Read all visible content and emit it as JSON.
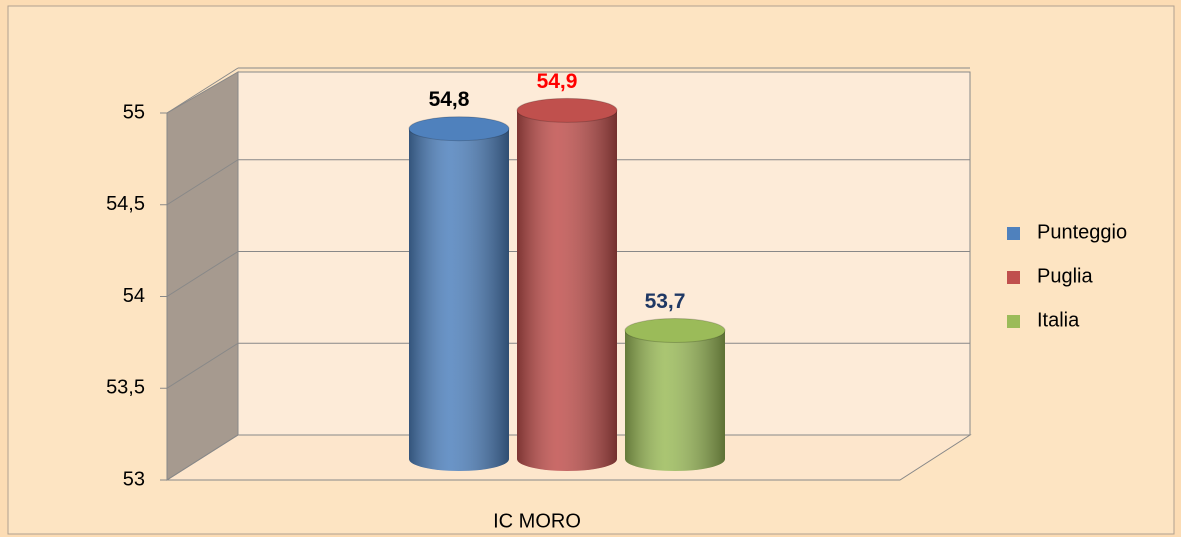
{
  "chart_data": {
    "type": "bar3d",
    "categories": [
      "IC MORO"
    ],
    "series": [
      {
        "name": "Punteggio",
        "color": "#4f81bd",
        "values": [
          54.8
        ],
        "value_labels": [
          "54,8"
        ],
        "label_color": "#000000"
      },
      {
        "name": "Puglia",
        "color": "#c0504d",
        "values": [
          54.9
        ],
        "value_labels": [
          "54,9"
        ],
        "label_color": "#ff0000"
      },
      {
        "name": "Italia",
        "color": "#9bbb59",
        "values": [
          53.7
        ],
        "value_labels": [
          "53,7"
        ],
        "label_color": "#1f3864"
      }
    ],
    "ylim": [
      53,
      55
    ],
    "yticks": [
      53,
      {
        "value": 53.5,
        "label": "53,5"
      },
      54,
      {
        "value": 54.5,
        "label": "54,5"
      },
      55
    ],
    "grid": true,
    "legend": "right"
  }
}
